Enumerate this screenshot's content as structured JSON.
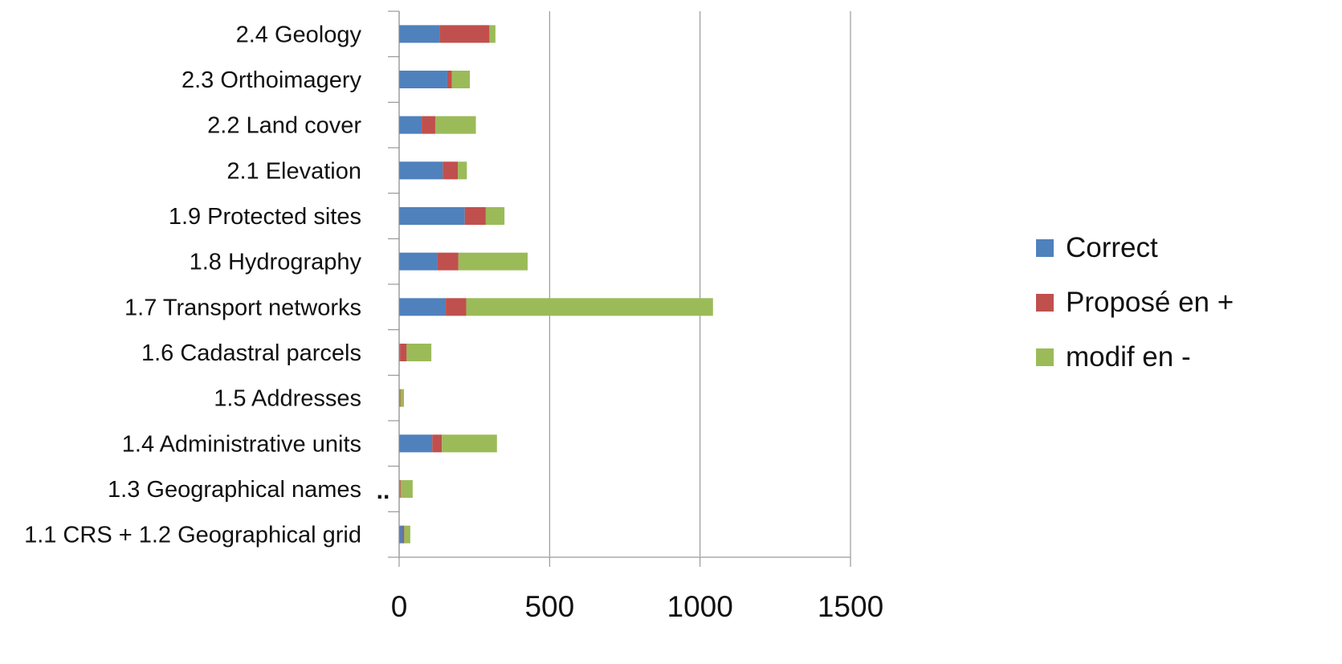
{
  "chart_data": {
    "type": "bar",
    "orientation": "horizontal",
    "stacked": true,
    "title": "",
    "xlabel": "",
    "ylabel": "",
    "xlim": [
      0,
      1500
    ],
    "x_ticks": [
      0,
      500,
      1000,
      1500
    ],
    "grid": "vertical",
    "legend_position": "right",
    "categories": [
      "2.4 Geology",
      "2.3 Orthoimagery",
      "2.2 Land cover",
      "2.1 Elevation",
      "1.9 Protected sites",
      "1.8 Hydrography",
      "1.7 Transport networks",
      "1.6 Cadastral parcels",
      "1.5 Addresses",
      "1.4 Administrative units",
      "1.3 Geographical names",
      "1.1 CRS + 1.2 Geographical grid"
    ],
    "series": [
      {
        "name": "Correct",
        "color": "#4f81bd",
        "values": [
          135,
          160,
          75,
          145,
          218,
          127,
          155,
          3,
          2,
          110,
          2,
          12
        ]
      },
      {
        "name": "Proposé en +",
        "color": "#c0504d",
        "values": [
          165,
          15,
          45,
          50,
          70,
          70,
          68,
          22,
          2,
          32,
          3,
          5
        ]
      },
      {
        "name": "modif en -",
        "color": "#9bbb59",
        "values": [
          20,
          60,
          135,
          30,
          62,
          230,
          820,
          82,
          12,
          183,
          40,
          20
        ]
      }
    ],
    "annotations": [
      {
        "text": "..",
        "near_category": "1.3 Geographical names"
      }
    ]
  }
}
